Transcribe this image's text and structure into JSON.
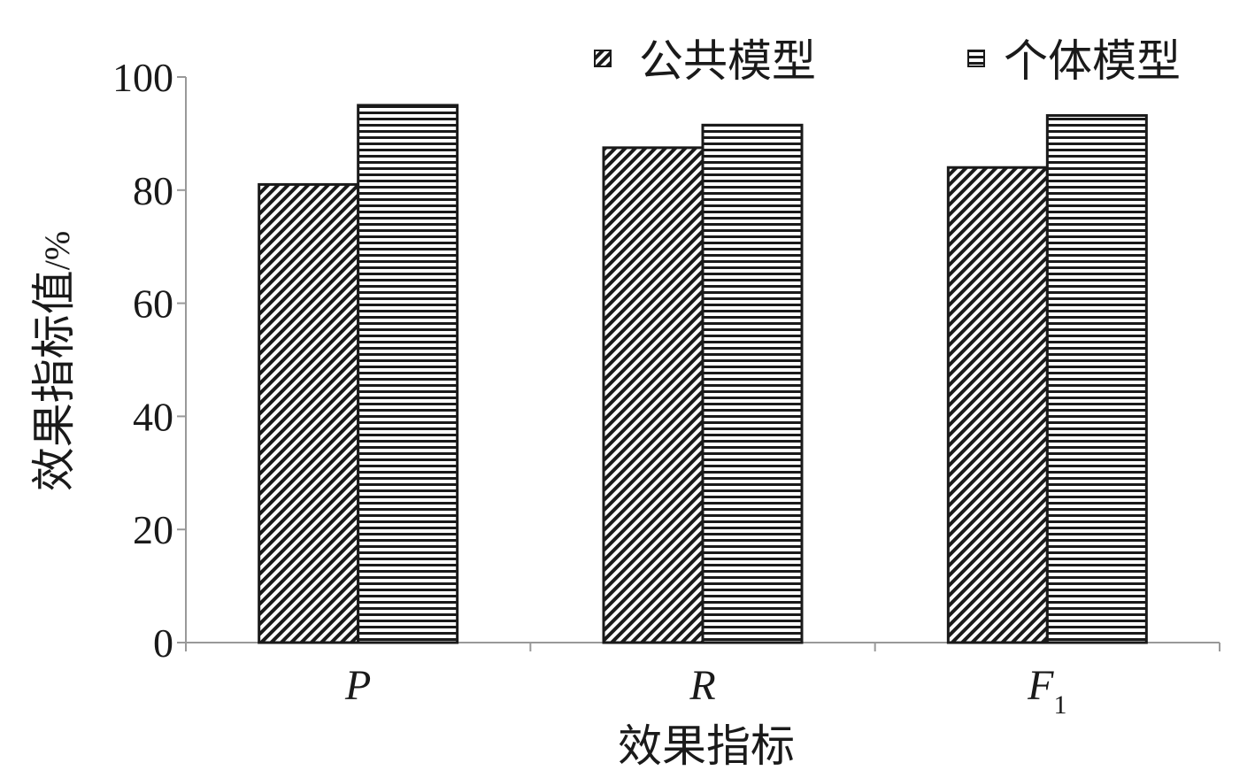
{
  "chart_data": {
    "type": "bar",
    "categories": [
      "P",
      "R",
      "F"
    ],
    "category_subscripts": [
      "",
      "",
      "1"
    ],
    "series": [
      {
        "name": "公共模型",
        "values": [
          81,
          87.5,
          84
        ],
        "pattern": "diagonal-hatch"
      },
      {
        "name": "个体模型",
        "values": [
          95,
          91.5,
          93.2
        ],
        "pattern": "horizontal-lines"
      }
    ],
    "xlabel": "效果指标",
    "ylabel": "效果指标值",
    "ylabel_unit": "/%",
    "ylim": [
      0,
      100
    ],
    "yticks": [
      "0",
      "20",
      "40",
      "60",
      "80",
      "100"
    ],
    "legend_position": "top-right",
    "grid": false,
    "colors": {
      "ink": "#1a1a1a",
      "axis": "#999999",
      "background": "#ffffff"
    }
  }
}
